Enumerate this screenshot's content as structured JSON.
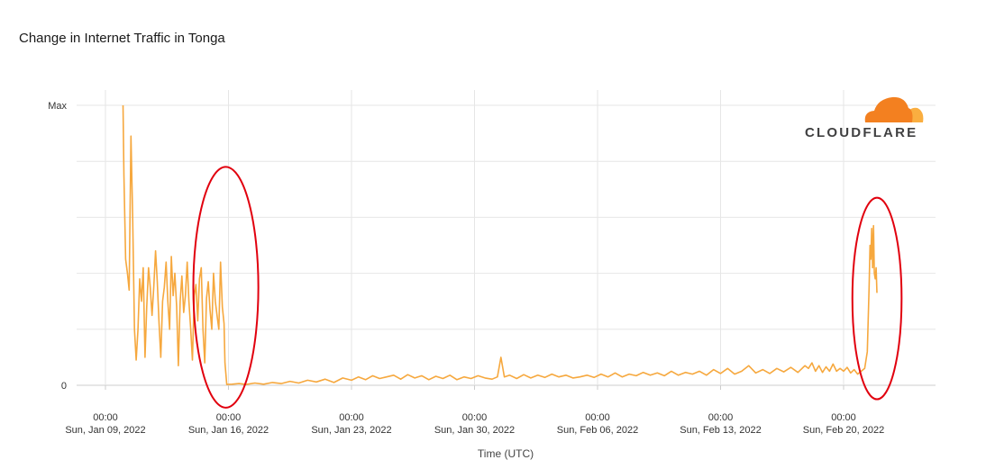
{
  "chart_data": {
    "type": "line",
    "title": "Change in Internet Traffic in Tonga",
    "xlabel": "Time (UTC)",
    "ylabel": "",
    "y_ticks": [
      {
        "value": 1,
        "label": "Max"
      },
      {
        "value": 0,
        "label": "0"
      }
    ],
    "ylim": [
      0,
      1
    ],
    "x_ticks": [
      {
        "day": 0,
        "time": "00:00",
        "date": "Sun, Jan 09, 2022"
      },
      {
        "day": 7,
        "time": "00:00",
        "date": "Sun, Jan 16, 2022"
      },
      {
        "day": 14,
        "time": "00:00",
        "date": "Sun, Jan 23, 2022"
      },
      {
        "day": 21,
        "time": "00:00",
        "date": "Sun, Jan 30, 2022"
      },
      {
        "day": 28,
        "time": "00:00",
        "date": "Sun, Feb 06, 2022"
      },
      {
        "day": 35,
        "time": "00:00",
        "date": "Sun, Feb 13, 2022"
      },
      {
        "day": 42,
        "time": "00:00",
        "date": "Sun, Feb 20, 2022"
      }
    ],
    "grid": true,
    "line_color": "#f6a83e",
    "series": [
      {
        "name": "",
        "points": [
          [
            1.0,
            1.0
          ],
          [
            1.05,
            0.75
          ],
          [
            1.15,
            0.45
          ],
          [
            1.25,
            0.4
          ],
          [
            1.35,
            0.34
          ],
          [
            1.45,
            0.89
          ],
          [
            1.55,
            0.6
          ],
          [
            1.65,
            0.2
          ],
          [
            1.75,
            0.09
          ],
          [
            1.85,
            0.2
          ],
          [
            1.95,
            0.38
          ],
          [
            2.05,
            0.3
          ],
          [
            2.15,
            0.42
          ],
          [
            2.25,
            0.1
          ],
          [
            2.35,
            0.28
          ],
          [
            2.45,
            0.42
          ],
          [
            2.55,
            0.35
          ],
          [
            2.65,
            0.25
          ],
          [
            2.75,
            0.35
          ],
          [
            2.85,
            0.48
          ],
          [
            2.95,
            0.37
          ],
          [
            3.05,
            0.22
          ],
          [
            3.15,
            0.1
          ],
          [
            3.25,
            0.3
          ],
          [
            3.35,
            0.35
          ],
          [
            3.45,
            0.44
          ],
          [
            3.55,
            0.3
          ],
          [
            3.65,
            0.2
          ],
          [
            3.75,
            0.46
          ],
          [
            3.85,
            0.32
          ],
          [
            3.95,
            0.4
          ],
          [
            4.05,
            0.28
          ],
          [
            4.15,
            0.07
          ],
          [
            4.25,
            0.3
          ],
          [
            4.35,
            0.39
          ],
          [
            4.45,
            0.26
          ],
          [
            4.55,
            0.32
          ],
          [
            4.65,
            0.44
          ],
          [
            4.75,
            0.3
          ],
          [
            4.85,
            0.2
          ],
          [
            4.95,
            0.09
          ],
          [
            5.05,
            0.32
          ],
          [
            5.15,
            0.36
          ],
          [
            5.25,
            0.23
          ],
          [
            5.35,
            0.38
          ],
          [
            5.45,
            0.42
          ],
          [
            5.55,
            0.2
          ],
          [
            5.65,
            0.08
          ],
          [
            5.75,
            0.31
          ],
          [
            5.85,
            0.37
          ],
          [
            5.95,
            0.27
          ],
          [
            6.05,
            0.2
          ],
          [
            6.15,
            0.4
          ],
          [
            6.25,
            0.3
          ],
          [
            6.35,
            0.25
          ],
          [
            6.45,
            0.2
          ],
          [
            6.55,
            0.44
          ],
          [
            6.65,
            0.28
          ],
          [
            6.75,
            0.22
          ],
          [
            6.8,
            0.08
          ],
          [
            6.9,
            0.003
          ],
          [
            7.2,
            0.004
          ],
          [
            7.6,
            0.006
          ],
          [
            8.0,
            0.003
          ],
          [
            8.5,
            0.008
          ],
          [
            9.0,
            0.004
          ],
          [
            9.5,
            0.01
          ],
          [
            10.0,
            0.006
          ],
          [
            10.5,
            0.014
          ],
          [
            11.0,
            0.008
          ],
          [
            11.5,
            0.018
          ],
          [
            12.0,
            0.012
          ],
          [
            12.5,
            0.022
          ],
          [
            13.0,
            0.01
          ],
          [
            13.5,
            0.026
          ],
          [
            14.0,
            0.018
          ],
          [
            14.4,
            0.03
          ],
          [
            14.8,
            0.02
          ],
          [
            15.2,
            0.034
          ],
          [
            15.6,
            0.024
          ],
          [
            16.0,
            0.03
          ],
          [
            16.4,
            0.036
          ],
          [
            16.8,
            0.022
          ],
          [
            17.2,
            0.038
          ],
          [
            17.6,
            0.026
          ],
          [
            18.0,
            0.034
          ],
          [
            18.4,
            0.02
          ],
          [
            18.8,
            0.032
          ],
          [
            19.2,
            0.024
          ],
          [
            19.6,
            0.036
          ],
          [
            20.0,
            0.02
          ],
          [
            20.4,
            0.03
          ],
          [
            20.8,
            0.024
          ],
          [
            21.2,
            0.034
          ],
          [
            21.6,
            0.026
          ],
          [
            22.0,
            0.022
          ],
          [
            22.3,
            0.03
          ],
          [
            22.5,
            0.1
          ],
          [
            22.7,
            0.03
          ],
          [
            23.0,
            0.036
          ],
          [
            23.4,
            0.024
          ],
          [
            23.8,
            0.038
          ],
          [
            24.2,
            0.026
          ],
          [
            24.6,
            0.036
          ],
          [
            25.0,
            0.028
          ],
          [
            25.4,
            0.04
          ],
          [
            25.8,
            0.03
          ],
          [
            26.2,
            0.036
          ],
          [
            26.6,
            0.026
          ],
          [
            27.0,
            0.03
          ],
          [
            27.4,
            0.036
          ],
          [
            27.8,
            0.028
          ],
          [
            28.2,
            0.04
          ],
          [
            28.6,
            0.03
          ],
          [
            29.0,
            0.044
          ],
          [
            29.4,
            0.03
          ],
          [
            29.8,
            0.04
          ],
          [
            30.2,
            0.034
          ],
          [
            30.6,
            0.046
          ],
          [
            31.0,
            0.036
          ],
          [
            31.4,
            0.044
          ],
          [
            31.8,
            0.034
          ],
          [
            32.2,
            0.05
          ],
          [
            32.6,
            0.036
          ],
          [
            33.0,
            0.046
          ],
          [
            33.4,
            0.04
          ],
          [
            33.8,
            0.05
          ],
          [
            34.2,
            0.036
          ],
          [
            34.6,
            0.056
          ],
          [
            35.0,
            0.042
          ],
          [
            35.4,
            0.06
          ],
          [
            35.8,
            0.04
          ],
          [
            36.2,
            0.05
          ],
          [
            36.6,
            0.07
          ],
          [
            37.0,
            0.044
          ],
          [
            37.4,
            0.056
          ],
          [
            37.8,
            0.042
          ],
          [
            38.2,
            0.06
          ],
          [
            38.6,
            0.048
          ],
          [
            39.0,
            0.064
          ],
          [
            39.4,
            0.046
          ],
          [
            39.8,
            0.07
          ],
          [
            40.0,
            0.06
          ],
          [
            40.2,
            0.08
          ],
          [
            40.4,
            0.05
          ],
          [
            40.6,
            0.07
          ],
          [
            40.8,
            0.046
          ],
          [
            41.0,
            0.066
          ],
          [
            41.2,
            0.05
          ],
          [
            41.4,
            0.076
          ],
          [
            41.6,
            0.05
          ],
          [
            41.8,
            0.06
          ],
          [
            42.0,
            0.05
          ],
          [
            42.2,
            0.064
          ],
          [
            42.4,
            0.044
          ],
          [
            42.6,
            0.056
          ],
          [
            42.8,
            0.04
          ],
          [
            43.0,
            0.05
          ],
          [
            43.2,
            0.06
          ],
          [
            43.35,
            0.12
          ],
          [
            43.45,
            0.35
          ],
          [
            43.5,
            0.5
          ],
          [
            43.55,
            0.45
          ],
          [
            43.6,
            0.56
          ],
          [
            43.65,
            0.42
          ],
          [
            43.7,
            0.57
          ],
          [
            43.75,
            0.4
          ],
          [
            43.8,
            0.38
          ],
          [
            43.85,
            0.42
          ],
          [
            43.9,
            0.33
          ]
        ]
      }
    ],
    "annotations": [
      {
        "type": "ellipse",
        "color": "#e1000e",
        "x_range": [
          5.0,
          8.7
        ],
        "y_range": [
          -0.08,
          0.78
        ]
      },
      {
        "type": "ellipse",
        "color": "#e1000e",
        "x_range": [
          42.5,
          45.3
        ],
        "y_range": [
          -0.05,
          0.67
        ]
      }
    ]
  },
  "brand": {
    "name": "CLOUDFLARE",
    "colors": {
      "cloud_primary": "#f38020",
      "cloud_secondary": "#faae40",
      "text": "#404041"
    }
  }
}
